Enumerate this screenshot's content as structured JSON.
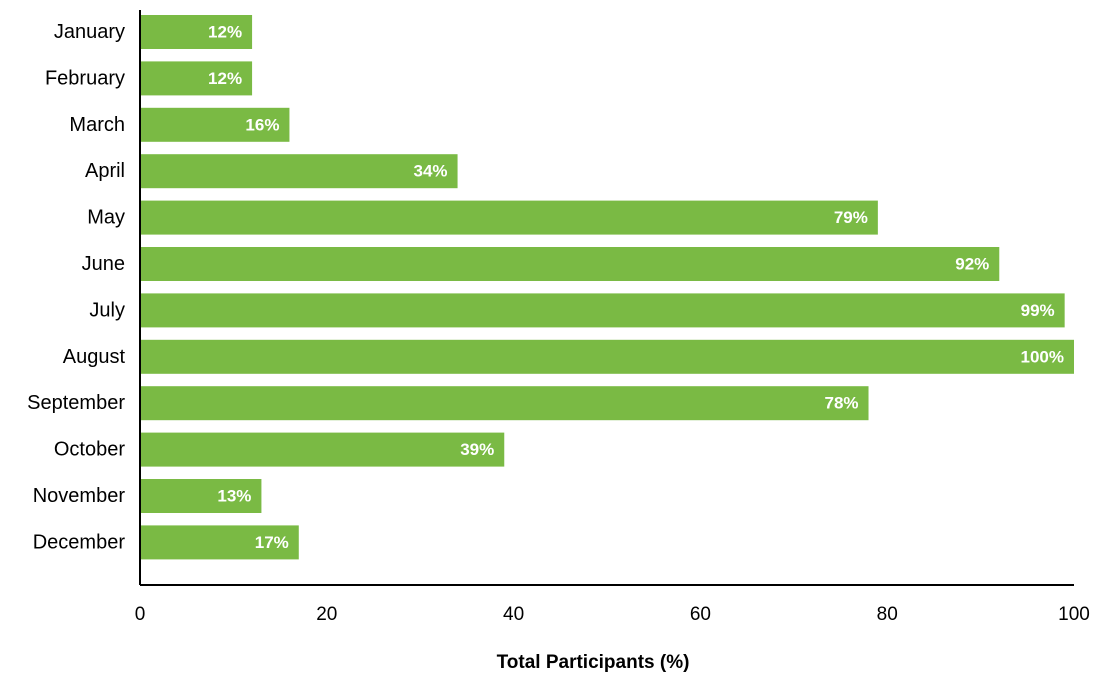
{
  "chart_data": {
    "type": "bar",
    "orientation": "horizontal",
    "categories": [
      "January",
      "February",
      "March",
      "April",
      "May",
      "June",
      "July",
      "August",
      "September",
      "October",
      "November",
      "December"
    ],
    "values": [
      12,
      12,
      16,
      34,
      79,
      92,
      99,
      100,
      78,
      39,
      13,
      17
    ],
    "data_labels": [
      "12%",
      "12%",
      "16%",
      "34%",
      "79%",
      "92%",
      "99%",
      "100%",
      "78%",
      "39%",
      "13%",
      "17%"
    ],
    "title": "",
    "xlabel": "Total Participants (%)",
    "ylabel": "",
    "xlim": [
      0,
      100
    ],
    "xticks": [
      "0",
      "20",
      "40",
      "60",
      "80",
      "100"
    ],
    "grid": false,
    "legend": "none",
    "bar_color": "#7aba44",
    "data_label_color": "#ffffff"
  }
}
